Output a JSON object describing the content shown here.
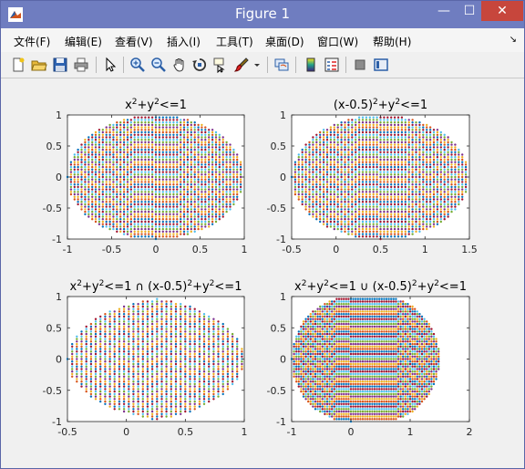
{
  "window": {
    "title": "Figure 1",
    "min_glyph": "—",
    "max_glyph": "☐",
    "close_glyph": "✕"
  },
  "menu": {
    "items": [
      "文件(F)",
      "编辑(E)",
      "查看(V)",
      "插入(I)",
      "工具(T)",
      "桌面(D)",
      "窗口(W)",
      "帮助(H)"
    ],
    "overflow_glyph": "↘"
  },
  "toolbar": {
    "icons": [
      "new-figure-icon",
      "open-file-icon",
      "save-icon",
      "print-icon",
      "edit-plot-icon",
      "zoom-in-icon",
      "zoom-out-icon",
      "pan-icon",
      "rotate-3d-icon",
      "data-cursor-icon",
      "brush-icon",
      "brush-dropdown-icon",
      "link-plot-icon",
      "insert-colorbar-icon",
      "insert-legend-icon",
      "hide-plot-tools-icon",
      "show-plot-tools-icon"
    ]
  },
  "colors": [
    "#0072bd",
    "#d95319",
    "#edb120",
    "#7e2f8e",
    "#77ac30",
    "#4dbeee",
    "#a2142f"
  ],
  "chart_data": [
    {
      "type": "scatter",
      "title": {
        "base": "x",
        "sup1": "2",
        "mid1": "+y",
        "sup2": "2",
        "tail": "<=1"
      },
      "xlim": [
        -1,
        1
      ],
      "ylim": [
        -1,
        1
      ],
      "xticks": [
        "-1",
        "-0.5",
        "0",
        "0.5",
        "1"
      ],
      "yticks": [
        "1",
        "0.5",
        "0",
        "-0.5",
        "-1"
      ],
      "series": [
        {
          "region": "x^2+y^2<=1",
          "sampling": "grid",
          "step_x": 0.04,
          "step_y": 0.04
        }
      ]
    },
    {
      "type": "scatter",
      "title": {
        "base": "(x-0.5)",
        "sup1": "2",
        "mid1": "+y",
        "sup2": "2",
        "tail": "<=1"
      },
      "xlim": [
        -0.5,
        1.5
      ],
      "ylim": [
        -1,
        1
      ],
      "xticks": [
        "-0.5",
        "0",
        "0.5",
        "1",
        "1.5"
      ],
      "yticks": [
        "1",
        "0.5",
        "0",
        "-0.5",
        "-1"
      ],
      "series": [
        {
          "region": "(x-0.5)^2+y^2<=1",
          "sampling": "grid",
          "step_x": 0.04,
          "step_y": 0.04
        }
      ]
    },
    {
      "type": "scatter",
      "title": {
        "base": "x",
        "sup1": "2",
        "mid1": "+y",
        "sup2": "2",
        "mid2": "<=1 ∩ (x-0.5)",
        "sup3": "2",
        "mid3": "+y",
        "sup4": "2",
        "tail": "<=1"
      },
      "xlim": [
        -0.5,
        1
      ],
      "ylim": [
        -1,
        1
      ],
      "xticks": [
        "-0.5",
        "0",
        "0.5",
        "1"
      ],
      "yticks": [
        "1",
        "0.5",
        "0",
        "-0.5",
        "-1"
      ],
      "series": [
        {
          "region": "x^2+y^2<=1 and (x-0.5)^2+y^2<=1",
          "sampling": "grid",
          "step_x": 0.04,
          "step_y": 0.04
        }
      ]
    },
    {
      "type": "scatter",
      "title": {
        "base": "x",
        "sup1": "2",
        "mid1": "+y",
        "sup2": "2",
        "mid2": "<=1 ∪ (x-0.5)",
        "sup3": "2",
        "mid3": "+y",
        "sup4": "2",
        "tail": "<=1"
      },
      "xlim": [
        -1,
        2
      ],
      "ylim": [
        -1,
        1
      ],
      "xticks": [
        "-1",
        "0",
        "1",
        "2"
      ],
      "yticks": [
        "1",
        "0.5",
        "0",
        "-0.5",
        "-1"
      ],
      "series": [
        {
          "region": "x^2+y^2<=1 or (x-0.5)^2+y^2<=1",
          "sampling": "grid",
          "step_x": 0.04,
          "step_y": 0.04
        }
      ]
    }
  ]
}
